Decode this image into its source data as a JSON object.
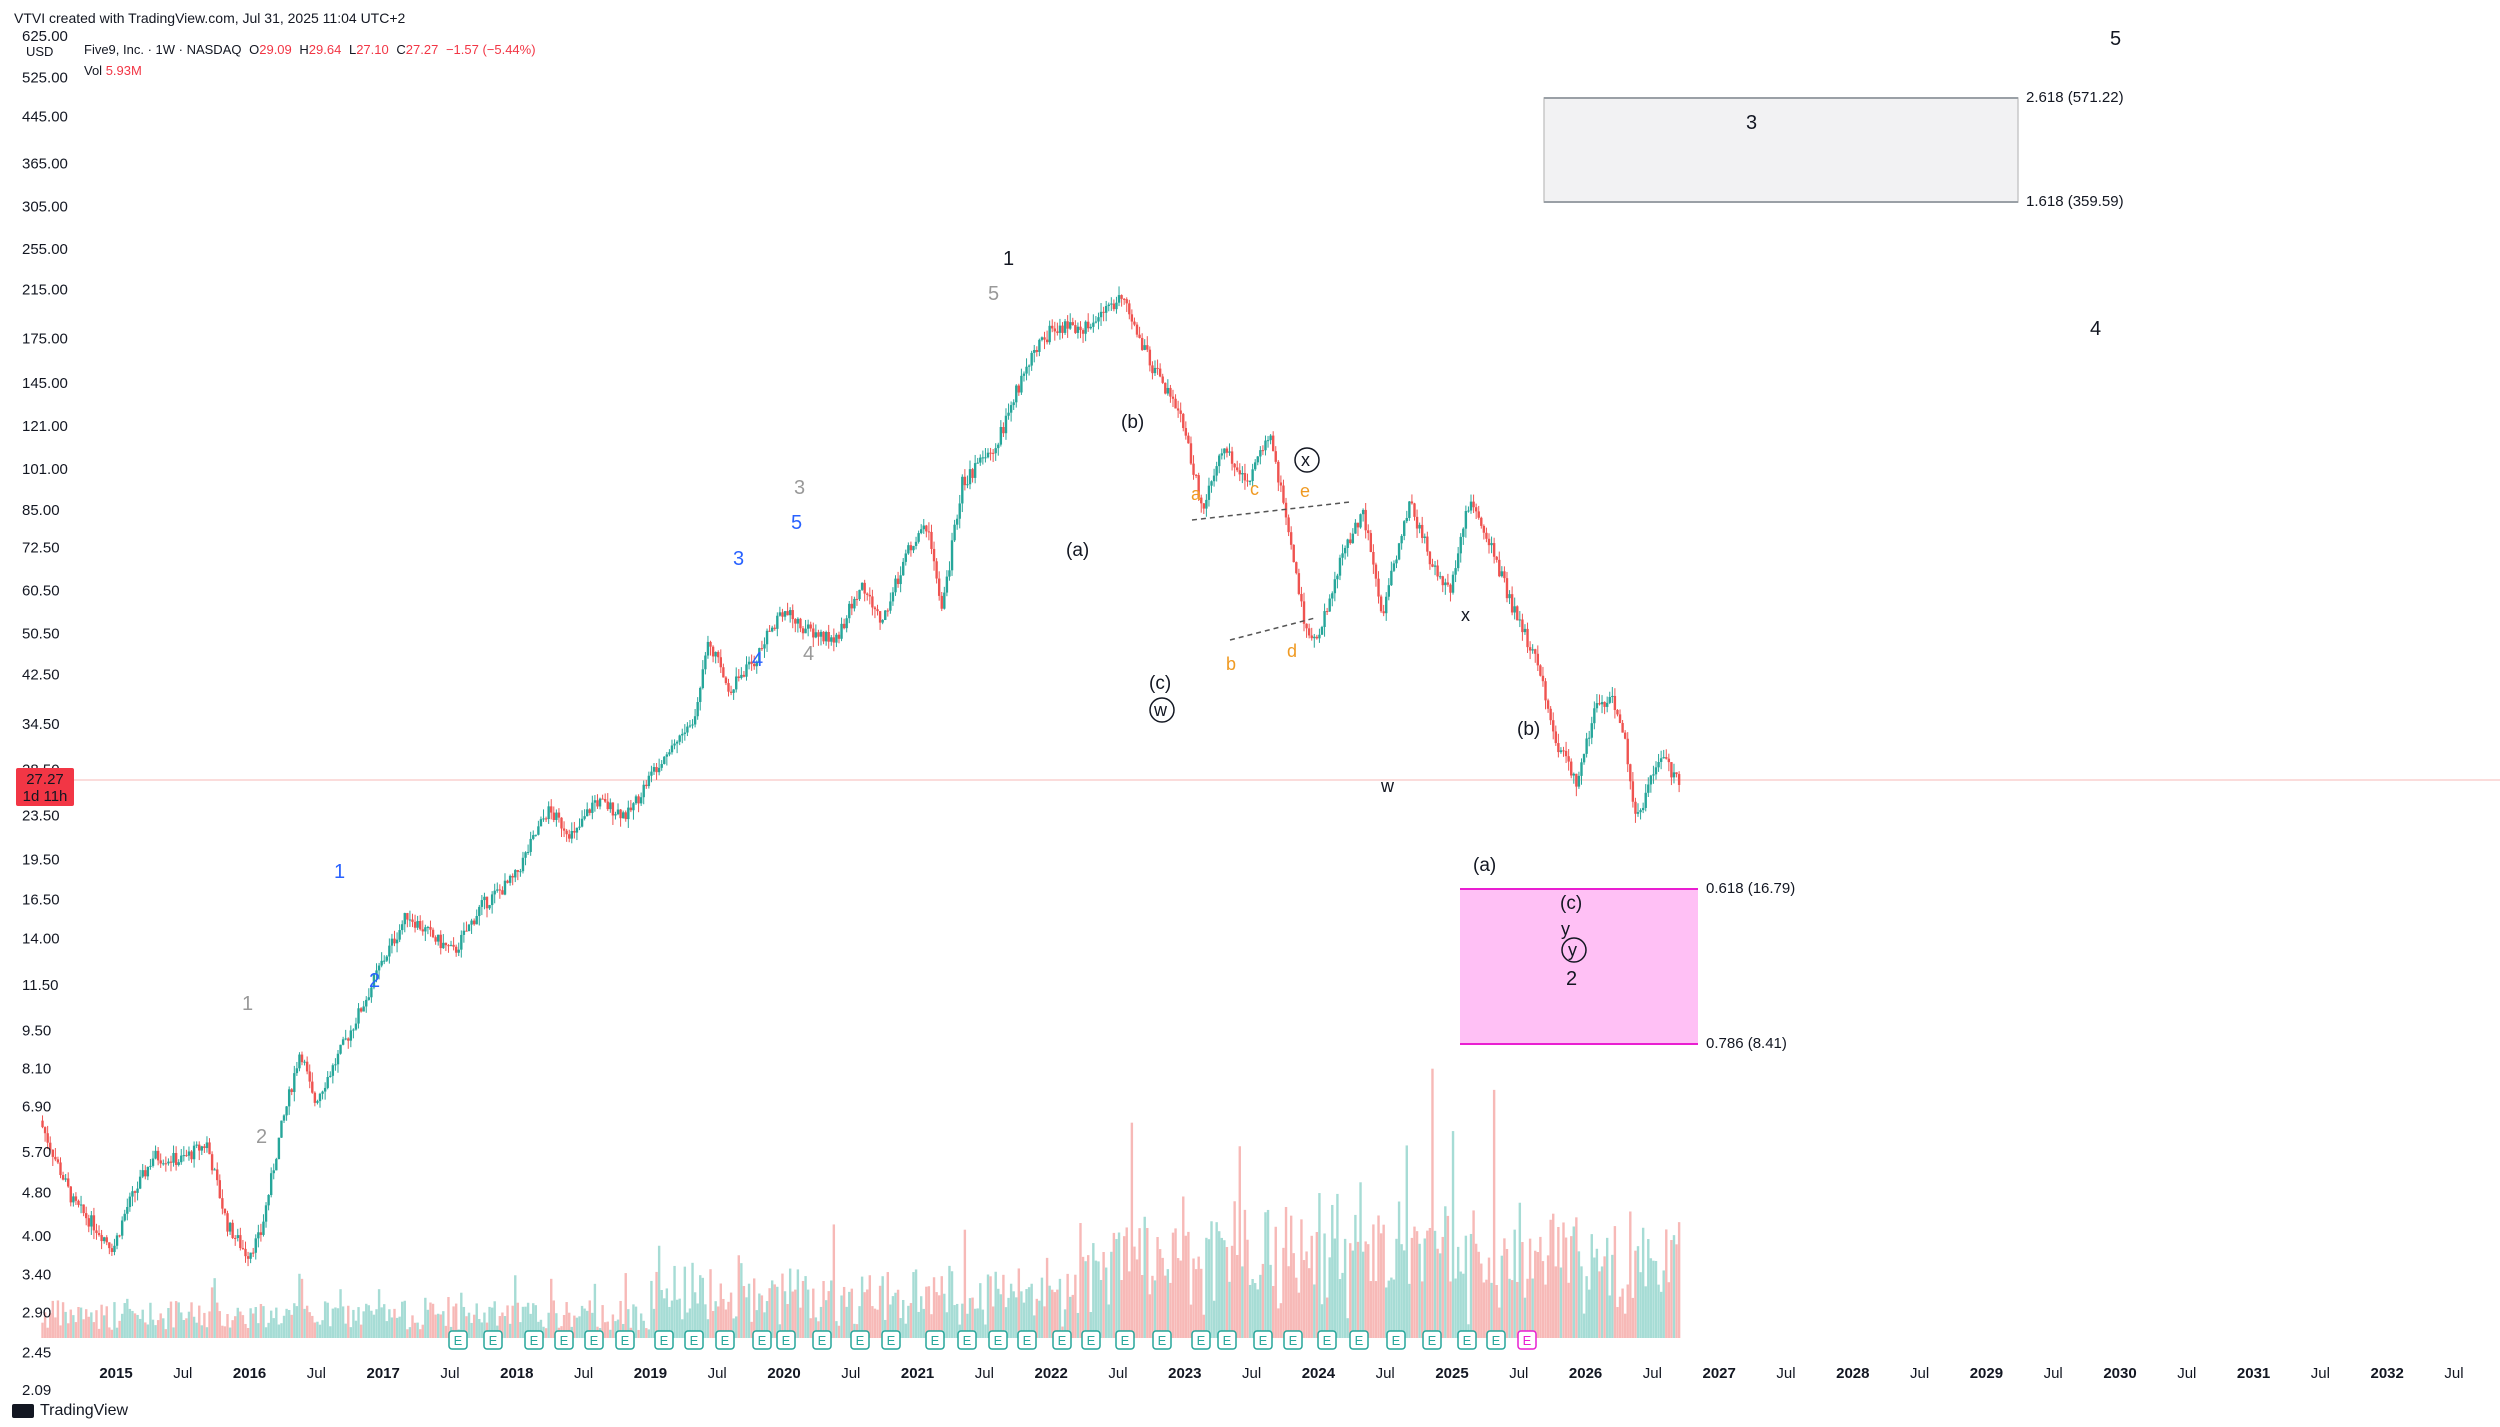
{
  "header": {
    "created_by": "VTVI created with TradingView.com, Jul 31, 2025 11:04 UTC+2",
    "currency": "USD",
    "symbol_line": "Five9, Inc. · 1W · NASDAQ",
    "open_label": "O",
    "open": "29.09",
    "high_label": "H",
    "high": "29.64",
    "low_label": "L",
    "low": "27.10",
    "close_label": "C",
    "close": "27.27",
    "change": "−1.57 (−5.44%)",
    "vol_label": "Vol",
    "vol": "5.93M"
  },
  "price_marker": {
    "price": "27.27",
    "countdown": "1d 11h"
  },
  "footer": {
    "brand": "TradingView"
  },
  "colors": {
    "up": "#26a69a",
    "down": "#ef5350",
    "up_vol": "#a6dcd5",
    "down_vol": "#f7b9b7",
    "blue_wave": "#2962ff",
    "gray_wave": "#999999",
    "orange_wave": "#f09a22",
    "pink_zone": "#ffc0f5",
    "pink_text": "#e91ed1",
    "gray_zone": "#f2f2f3"
  },
  "chart_data": {
    "type": "candlestick",
    "scale": "log",
    "yticks": [
      "625.00",
      "525.00",
      "445.00",
      "365.00",
      "305.00",
      "255.00",
      "215.00",
      "175.00",
      "145.00",
      "121.00",
      "101.00",
      "85.00",
      "72.50",
      "60.50",
      "50.50",
      "42.50",
      "34.50",
      "28.50",
      "23.50",
      "19.50",
      "16.50",
      "14.00",
      "11.50",
      "9.50",
      "8.10",
      "6.90",
      "5.70",
      "4.80",
      "4.00",
      "3.40",
      "2.90",
      "2.45",
      "2.09"
    ],
    "ylim": [
      2.09,
      700
    ],
    "xticks": [
      "2015",
      "Jul",
      "2016",
      "Jul",
      "2017",
      "Jul",
      "2018",
      "Jul",
      "2019",
      "Jul",
      "2020",
      "Jul",
      "2021",
      "Jul",
      "2022",
      "Jul",
      "2023",
      "Jul",
      "2024",
      "Jul",
      "2025",
      "Jul",
      "2026",
      "Jul",
      "2027",
      "Jul",
      "2028",
      "Jul",
      "2029",
      "Jul",
      "2030",
      "Jul",
      "2031",
      "Jul",
      "2032",
      "Jul"
    ],
    "price_path": [
      [
        2014.45,
        6.5
      ],
      [
        2014.7,
        4.6
      ],
      [
        2014.85,
        4.2
      ],
      [
        2015.0,
        3.8
      ],
      [
        2015.1,
        4.5
      ],
      [
        2015.3,
        5.6
      ],
      [
        2015.5,
        5.5
      ],
      [
        2015.7,
        5.9
      ],
      [
        2015.85,
        4.2
      ],
      [
        2016.0,
        3.7
      ],
      [
        2016.1,
        4.0
      ],
      [
        2016.25,
        6.2
      ],
      [
        2016.4,
        8.8
      ],
      [
        2016.5,
        7.0
      ],
      [
        2016.65,
        8.2
      ],
      [
        2016.9,
        11.0
      ],
      [
        2017.0,
        12.5
      ],
      [
        2017.2,
        15.5
      ],
      [
        2017.4,
        14.0
      ],
      [
        2017.55,
        13.2
      ],
      [
        2017.75,
        16.0
      ],
      [
        2018.0,
        18.0
      ],
      [
        2018.25,
        24.0
      ],
      [
        2018.45,
        21.5
      ],
      [
        2018.6,
        25.0
      ],
      [
        2018.85,
        23.5
      ],
      [
        2019.1,
        30.0
      ],
      [
        2019.35,
        35.0
      ],
      [
        2019.45,
        50.0
      ],
      [
        2019.6,
        40.0
      ],
      [
        2019.8,
        45.0
      ],
      [
        2020.0,
        56.0
      ],
      [
        2020.2,
        51.0
      ],
      [
        2020.4,
        49.0
      ],
      [
        2020.6,
        62.0
      ],
      [
        2020.75,
        53.0
      ],
      [
        2020.95,
        72.0
      ],
      [
        2021.1,
        80.0
      ],
      [
        2021.2,
        55.0
      ],
      [
        2021.35,
        95.0
      ],
      [
        2021.6,
        110.0
      ],
      [
        2021.85,
        160.0
      ],
      [
        2022.05,
        185.0
      ],
      [
        2022.25,
        180.0
      ],
      [
        2022.45,
        200.0
      ],
      [
        2022.55,
        210.0
      ],
      [
        2022.75,
        160.0
      ],
      [
        2023.0,
        125.0
      ],
      [
        2023.15,
        85.0
      ],
      [
        2023.3,
        110.0
      ],
      [
        2023.5,
        95.0
      ],
      [
        2023.65,
        118.0
      ],
      [
        2023.8,
        78.0
      ],
      [
        2023.9,
        55.0
      ],
      [
        2024.0,
        48.0
      ],
      [
        2024.2,
        70.0
      ],
      [
        2024.35,
        85.0
      ],
      [
        2024.5,
        55.0
      ],
      [
        2024.7,
        88.0
      ],
      [
        2024.85,
        70.0
      ],
      [
        2025.0,
        60.0
      ],
      [
        2025.15,
        88.0
      ],
      [
        2025.3,
        75.0
      ],
      [
        2025.45,
        58.0
      ],
      [
        2025.65,
        45.0
      ],
      [
        2025.8,
        32.0
      ],
      [
        2025.95,
        27.0
      ],
      [
        2026.1,
        37.0
      ],
      [
        2026.2,
        39.0
      ],
      [
        2026.3,
        34.0
      ],
      [
        2026.4,
        23.0
      ],
      [
        2026.5,
        27.0
      ],
      [
        2026.6,
        30.0
      ],
      [
        2026.7,
        27.27
      ]
    ],
    "levels": [
      {
        "label": "2.618 (571.22)",
        "price": 571.22
      },
      {
        "label": "1.618 (359.59)",
        "price": 359.59
      },
      {
        "label": "0.618 (16.79)",
        "price": 16.79
      },
      {
        "label": "0.786 (8.41)",
        "price": 8.41
      }
    ],
    "wave_labels": [
      "5",
      "3",
      "4",
      "1",
      "5",
      "(b)",
      "x",
      "a",
      "c",
      "e",
      "3",
      "5",
      "3",
      "(a)",
      "4",
      "4",
      "1",
      "2",
      "1",
      "2",
      "(c)",
      "w",
      "b",
      "d",
      "x",
      "w",
      "(b)",
      "(a)",
      "(c)",
      "y",
      "y",
      "2"
    ],
    "earnings_marker": "E",
    "volume_max": "5.93M"
  }
}
